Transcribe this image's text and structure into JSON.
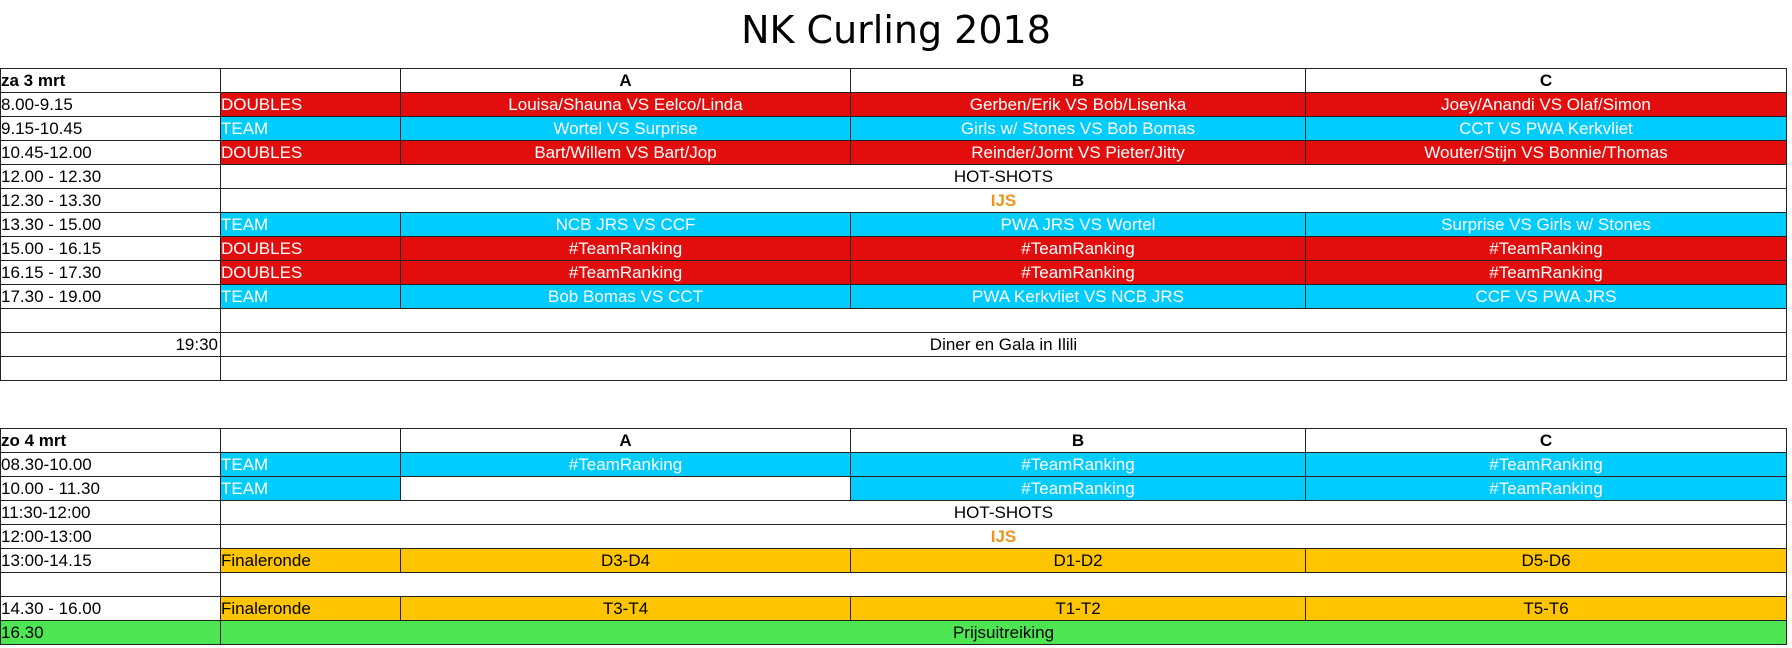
{
  "title": "NK Curling 2018",
  "colors": {
    "doubles": "#e20e0e",
    "team": "#00ccff",
    "finale": "#fec400",
    "prize": "#4de652",
    "ijs": "#f0931c"
  },
  "day1": {
    "label": "za 3 mrt",
    "columns": [
      "A",
      "B",
      "C"
    ],
    "rows": [
      {
        "time": "8.00-9.15",
        "type": "DOUBLES",
        "a": "Louisa/Shauna VS Eelco/Linda",
        "b": "Gerben/Erik VS Bob/Lisenka",
        "c": "Joey/Anandi VS Olaf/Simon"
      },
      {
        "time": "9.15-10.45",
        "type": "TEAM",
        "a": "Wortel VS Surprise",
        "b": "Girls w/ Stones VS Bob Bomas",
        "c": "CCT VS PWA Kerkvliet"
      },
      {
        "time": "10.45-12.00",
        "type": "DOUBLES",
        "a": "Bart/Willem VS Bart/Jop",
        "b": "Reinder/Jornt VS Pieter/Jitty",
        "c": "Wouter/Stijn VS Bonnie/Thomas"
      },
      {
        "time": "12.00 - 12.30",
        "span": "HOT-SHOTS"
      },
      {
        "time": "12.30 - 13.30",
        "span": "IJS"
      },
      {
        "time": "13.30 - 15.00",
        "type": "TEAM",
        "a": "NCB JRS  VS CCF",
        "b": "PWA JRS  VS Wortel",
        "c": "Surprise  VS  Girls w/ Stones"
      },
      {
        "time": "15.00 - 16.15",
        "type": "DOUBLES",
        "a": "#TeamRanking",
        "b": "#TeamRanking",
        "c": "#TeamRanking"
      },
      {
        "time": "16.15 - 17.30",
        "type": "DOUBLES",
        "a": "#TeamRanking",
        "b": "#TeamRanking",
        "c": "#TeamRanking"
      },
      {
        "time": "17.30 - 19.00",
        "type": "TEAM",
        "a": "Bob Bomas  VS  CCT",
        "b": "PWA Kerkvliet  VS  NCB JRS",
        "c": "CCF  VS  PWA JRS"
      },
      {
        "time": "19:30",
        "span": "Diner en Gala in Ilili"
      }
    ]
  },
  "day2": {
    "label": "zo 4 mrt",
    "columns": [
      "A",
      "B",
      "C"
    ],
    "rows": [
      {
        "time": "08.30-10.00",
        "type": "TEAM",
        "a": "#TeamRanking",
        "b": "#TeamRanking",
        "c": "#TeamRanking"
      },
      {
        "time": "10.00 - 11.30",
        "type": "TEAM",
        "a": "",
        "b": "#TeamRanking",
        "c": "#TeamRanking"
      },
      {
        "time": "11:30-12:00",
        "span": "HOT-SHOTS"
      },
      {
        "time": "12:00-13:00",
        "span": "IJS"
      },
      {
        "time": "13:00-14.15",
        "type": "Finaleronde",
        "a": "D3-D4",
        "b": "D1-D2",
        "c": "D5-D6"
      },
      {
        "time": "14.30 - 16.00",
        "type": "Finaleronde",
        "a": "T3-T4",
        "b": "T1-T2",
        "c": "T5-T6"
      },
      {
        "time": "16.30",
        "span": "Prijsuitreiking"
      }
    ]
  }
}
